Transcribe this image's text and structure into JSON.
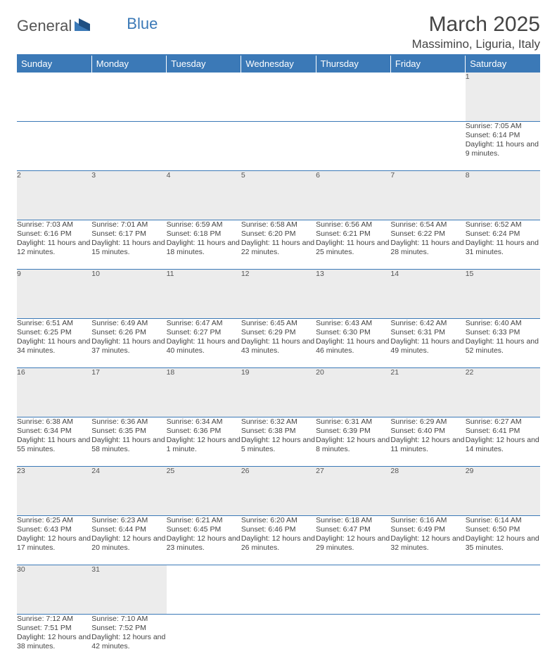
{
  "brand": {
    "part1": "General",
    "part2": "Blue"
  },
  "title": "March 2025",
  "location": "Massimino, Liguria, Italy",
  "colors": {
    "accent": "#3b79b7",
    "daynum_bg": "#ececec",
    "text": "#444444",
    "background": "#ffffff"
  },
  "weekday_headers": [
    "Sunday",
    "Monday",
    "Tuesday",
    "Wednesday",
    "Thursday",
    "Friday",
    "Saturday"
  ],
  "calendar": {
    "first_weekday_index": 6,
    "days": [
      {
        "n": 1,
        "sunrise": "7:05 AM",
        "sunset": "6:14 PM",
        "daylight": "11 hours and 9 minutes."
      },
      {
        "n": 2,
        "sunrise": "7:03 AM",
        "sunset": "6:16 PM",
        "daylight": "11 hours and 12 minutes."
      },
      {
        "n": 3,
        "sunrise": "7:01 AM",
        "sunset": "6:17 PM",
        "daylight": "11 hours and 15 minutes."
      },
      {
        "n": 4,
        "sunrise": "6:59 AM",
        "sunset": "6:18 PM",
        "daylight": "11 hours and 18 minutes."
      },
      {
        "n": 5,
        "sunrise": "6:58 AM",
        "sunset": "6:20 PM",
        "daylight": "11 hours and 22 minutes."
      },
      {
        "n": 6,
        "sunrise": "6:56 AM",
        "sunset": "6:21 PM",
        "daylight": "11 hours and 25 minutes."
      },
      {
        "n": 7,
        "sunrise": "6:54 AM",
        "sunset": "6:22 PM",
        "daylight": "11 hours and 28 minutes."
      },
      {
        "n": 8,
        "sunrise": "6:52 AM",
        "sunset": "6:24 PM",
        "daylight": "11 hours and 31 minutes."
      },
      {
        "n": 9,
        "sunrise": "6:51 AM",
        "sunset": "6:25 PM",
        "daylight": "11 hours and 34 minutes."
      },
      {
        "n": 10,
        "sunrise": "6:49 AM",
        "sunset": "6:26 PM",
        "daylight": "11 hours and 37 minutes."
      },
      {
        "n": 11,
        "sunrise": "6:47 AM",
        "sunset": "6:27 PM",
        "daylight": "11 hours and 40 minutes."
      },
      {
        "n": 12,
        "sunrise": "6:45 AM",
        "sunset": "6:29 PM",
        "daylight": "11 hours and 43 minutes."
      },
      {
        "n": 13,
        "sunrise": "6:43 AM",
        "sunset": "6:30 PM",
        "daylight": "11 hours and 46 minutes."
      },
      {
        "n": 14,
        "sunrise": "6:42 AM",
        "sunset": "6:31 PM",
        "daylight": "11 hours and 49 minutes."
      },
      {
        "n": 15,
        "sunrise": "6:40 AM",
        "sunset": "6:33 PM",
        "daylight": "11 hours and 52 minutes."
      },
      {
        "n": 16,
        "sunrise": "6:38 AM",
        "sunset": "6:34 PM",
        "daylight": "11 hours and 55 minutes."
      },
      {
        "n": 17,
        "sunrise": "6:36 AM",
        "sunset": "6:35 PM",
        "daylight": "11 hours and 58 minutes."
      },
      {
        "n": 18,
        "sunrise": "6:34 AM",
        "sunset": "6:36 PM",
        "daylight": "12 hours and 1 minute."
      },
      {
        "n": 19,
        "sunrise": "6:32 AM",
        "sunset": "6:38 PM",
        "daylight": "12 hours and 5 minutes."
      },
      {
        "n": 20,
        "sunrise": "6:31 AM",
        "sunset": "6:39 PM",
        "daylight": "12 hours and 8 minutes."
      },
      {
        "n": 21,
        "sunrise": "6:29 AM",
        "sunset": "6:40 PM",
        "daylight": "12 hours and 11 minutes."
      },
      {
        "n": 22,
        "sunrise": "6:27 AM",
        "sunset": "6:41 PM",
        "daylight": "12 hours and 14 minutes."
      },
      {
        "n": 23,
        "sunrise": "6:25 AM",
        "sunset": "6:43 PM",
        "daylight": "12 hours and 17 minutes."
      },
      {
        "n": 24,
        "sunrise": "6:23 AM",
        "sunset": "6:44 PM",
        "daylight": "12 hours and 20 minutes."
      },
      {
        "n": 25,
        "sunrise": "6:21 AM",
        "sunset": "6:45 PM",
        "daylight": "12 hours and 23 minutes."
      },
      {
        "n": 26,
        "sunrise": "6:20 AM",
        "sunset": "6:46 PM",
        "daylight": "12 hours and 26 minutes."
      },
      {
        "n": 27,
        "sunrise": "6:18 AM",
        "sunset": "6:47 PM",
        "daylight": "12 hours and 29 minutes."
      },
      {
        "n": 28,
        "sunrise": "6:16 AM",
        "sunset": "6:49 PM",
        "daylight": "12 hours and 32 minutes."
      },
      {
        "n": 29,
        "sunrise": "6:14 AM",
        "sunset": "6:50 PM",
        "daylight": "12 hours and 35 minutes."
      },
      {
        "n": 30,
        "sunrise": "7:12 AM",
        "sunset": "7:51 PM",
        "daylight": "12 hours and 38 minutes."
      },
      {
        "n": 31,
        "sunrise": "7:10 AM",
        "sunset": "7:52 PM",
        "daylight": "12 hours and 42 minutes."
      }
    ]
  },
  "labels": {
    "sunrise": "Sunrise:",
    "sunset": "Sunset:",
    "daylight": "Daylight:"
  }
}
